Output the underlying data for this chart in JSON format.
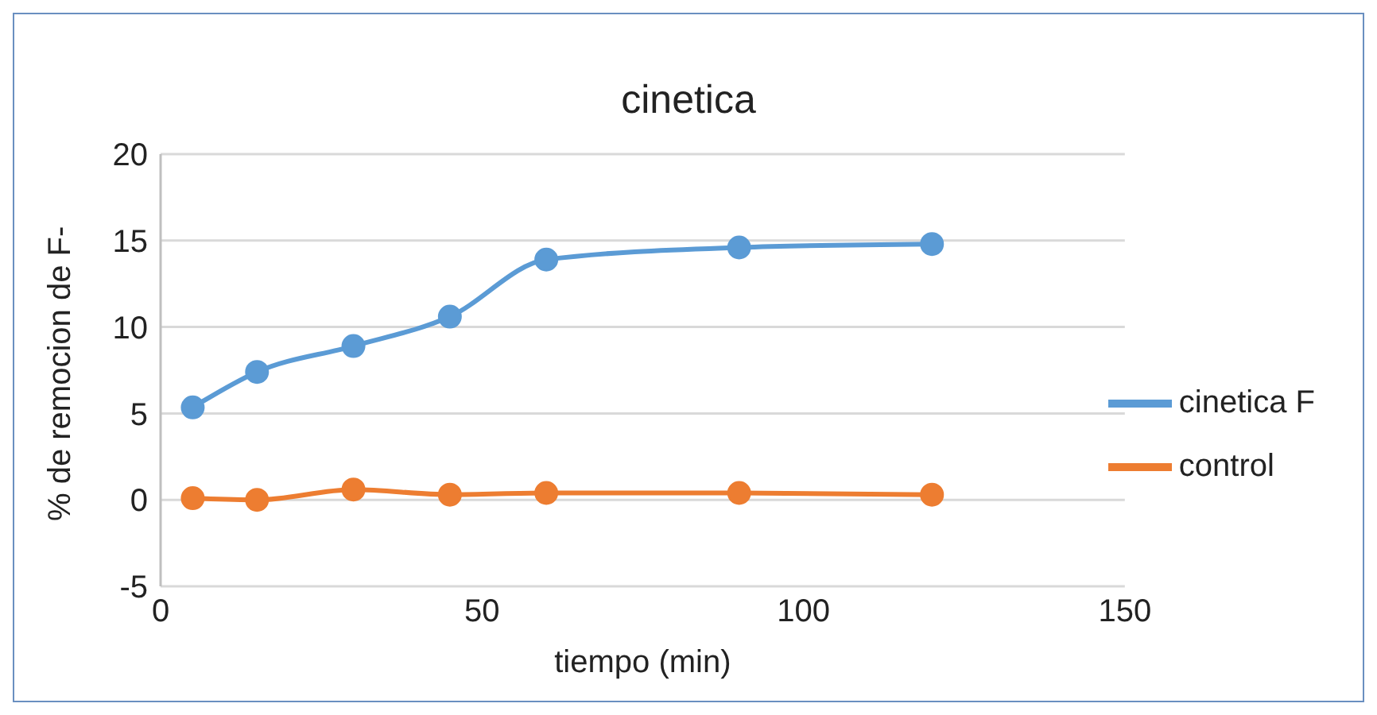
{
  "chart_data": {
    "type": "line",
    "title": "cinetica",
    "xlabel": "tiempo (min)",
    "ylabel": "% de remocion de F-",
    "x": [
      5,
      15,
      30,
      45,
      60,
      90,
      120
    ],
    "series": [
      {
        "name": "cinetica F",
        "color": "#5b9bd5",
        "values": [
          5.35,
          7.4,
          8.9,
          10.6,
          13.9,
          14.6,
          14.8
        ]
      },
      {
        "name": "control",
        "color": "#ed7d31",
        "values": [
          0.1,
          0,
          0.6,
          0.3,
          0.4,
          0.4,
          0.3
        ]
      }
    ],
    "xlim": [
      0,
      150
    ],
    "xticks": [
      0,
      50,
      100,
      150
    ],
    "ylim": [
      -5,
      20
    ],
    "yticks": [
      -5,
      0,
      5,
      10,
      15,
      20
    ],
    "grid": "y",
    "legend": "right",
    "marker": "circle",
    "line_style": "solid"
  }
}
